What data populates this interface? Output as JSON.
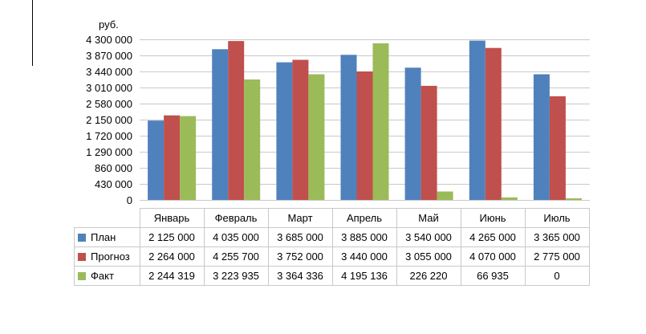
{
  "chart_data": {
    "type": "bar",
    "ylabel": "руб.",
    "categories": [
      "Январь",
      "Февраль",
      "Март",
      "Апрель",
      "Май",
      "Июнь",
      "Июль"
    ],
    "series": [
      {
        "name": "План",
        "color": "#4f81bd",
        "values": [
          2125000,
          4035000,
          3685000,
          3885000,
          3540000,
          4265000,
          3365000
        ],
        "labels": [
          "2 125 000",
          "4 035 000",
          "3 685 000",
          "3 885 000",
          "3 540 000",
          "4 265 000",
          "3 365 000"
        ]
      },
      {
        "name": "Прогноз",
        "color": "#c0504d",
        "values": [
          2264000,
          4255700,
          3752000,
          3440000,
          3055000,
          4070000,
          2775000
        ],
        "labels": [
          "2 264 000",
          "4 255 700",
          "3 752 000",
          "3 440 000",
          "3 055 000",
          "4 070 000",
          "2 775 000"
        ]
      },
      {
        "name": "Факт",
        "color": "#9bbb59",
        "values": [
          2244319,
          3223935,
          3364336,
          4195136,
          226220,
          66935,
          0
        ],
        "labels": [
          "2 244 319",
          "3 223 935",
          "3 364 336",
          "4 195 136",
          "226 220",
          "66 935",
          "0"
        ]
      }
    ],
    "ylim": [
      0,
      4300000
    ],
    "yticks": [
      0,
      430000,
      860000,
      1290000,
      1720000,
      2150000,
      2580000,
      3010000,
      3440000,
      3870000,
      4300000
    ],
    "ytick_labels": [
      "0",
      "430 000",
      "860 000",
      "1 290 000",
      "1 720 000",
      "2 150 000",
      "2 580 000",
      "3 010 000",
      "3 440 000",
      "3 870 000",
      "4 300 000"
    ],
    "grid": true,
    "legend": "data-table"
  }
}
